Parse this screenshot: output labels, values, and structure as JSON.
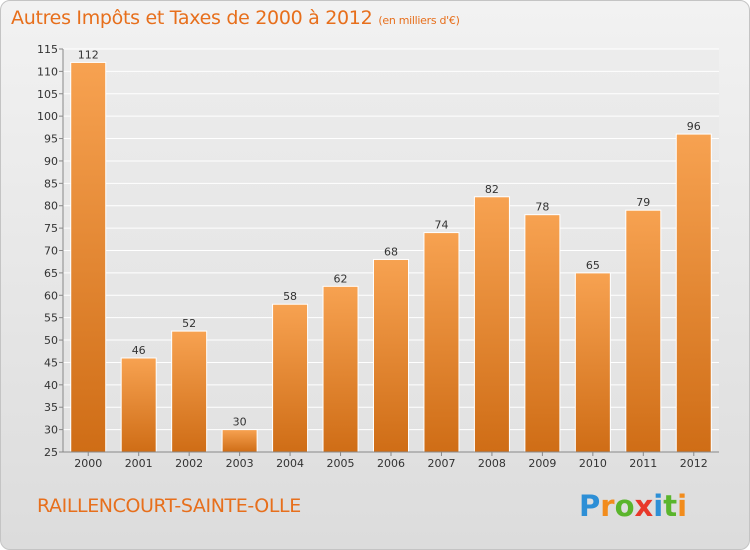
{
  "title": "Autres Impôts et Taxes de 2000 à 2012",
  "unit_note": "(en milliers d'€)",
  "commune": "RAILLENCOURT-SAINTE-OLLE",
  "logo": {
    "letters": [
      "P",
      "r",
      "o",
      "x",
      "i",
      "t",
      "i"
    ],
    "colors": [
      "#2d8fd6",
      "#f28c1c",
      "#5ab52c",
      "#e8382a",
      "#2d8fd6",
      "#5ab52c",
      "#f28c1c"
    ]
  },
  "colors": {
    "accent": "#e76f1c",
    "bar_top": "#f7a251",
    "bar_bottom": "#cf6d16"
  },
  "chart_data": {
    "type": "bar",
    "title": "Autres Impôts et Taxes de 2000 à 2012",
    "xlabel": "",
    "ylabel": "",
    "categories": [
      "2000",
      "2001",
      "2002",
      "2003",
      "2004",
      "2005",
      "2006",
      "2007",
      "2008",
      "2009",
      "2010",
      "2011",
      "2012"
    ],
    "values": [
      112,
      46,
      52,
      30,
      58,
      62,
      68,
      74,
      82,
      78,
      65,
      79,
      96
    ],
    "ylim": [
      25,
      115
    ],
    "yticks": [
      25,
      30,
      35,
      40,
      45,
      50,
      55,
      60,
      65,
      70,
      75,
      80,
      85,
      90,
      95,
      100,
      105,
      110,
      115
    ],
    "grid": true,
    "legend": "none"
  }
}
